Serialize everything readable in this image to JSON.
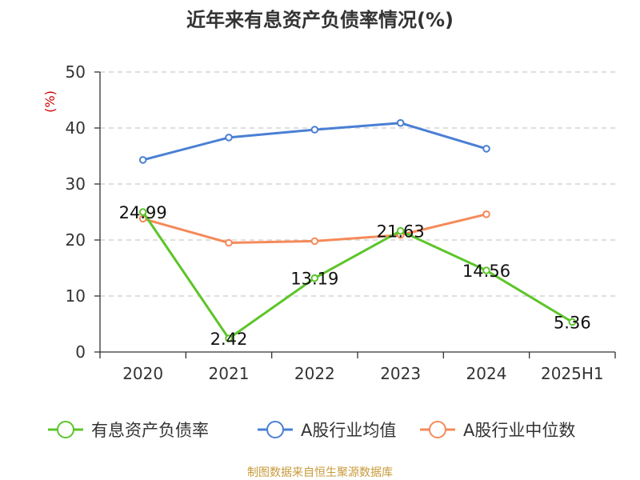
{
  "chart_data": {
    "type": "line",
    "title": "近年来有息资产负债率情况(%)",
    "ylabel": "(%)",
    "xlabel": "",
    "categories": [
      "2020",
      "2021",
      "2022",
      "2023",
      "2024",
      "2025H1"
    ],
    "ylim": [
      0,
      50
    ],
    "yticks": [
      0,
      10,
      20,
      30,
      40,
      50
    ],
    "grid": true,
    "legend_position": "bottom",
    "series": [
      {
        "name": "有息资产负债率",
        "color": "#5cc52a",
        "values": [
          24.99,
          2.42,
          13.19,
          21.63,
          14.56,
          5.36
        ],
        "labels": [
          "24.99",
          "2.42",
          "13.19",
          "21.63",
          "14.56",
          "5.36"
        ]
      },
      {
        "name": "A股行业均值",
        "color": "#4a7fd4",
        "values": [
          34.3,
          38.3,
          39.7,
          40.9,
          36.3,
          null
        ]
      },
      {
        "name": "A股行业中位数",
        "color": "#f58a5a",
        "values": [
          23.8,
          19.5,
          19.8,
          20.9,
          24.6,
          null
        ]
      }
    ],
    "source": "制图数据来自恒生聚源数据库",
    "ylabel_color": "#cc0000",
    "source_color": "#c89a3a"
  }
}
